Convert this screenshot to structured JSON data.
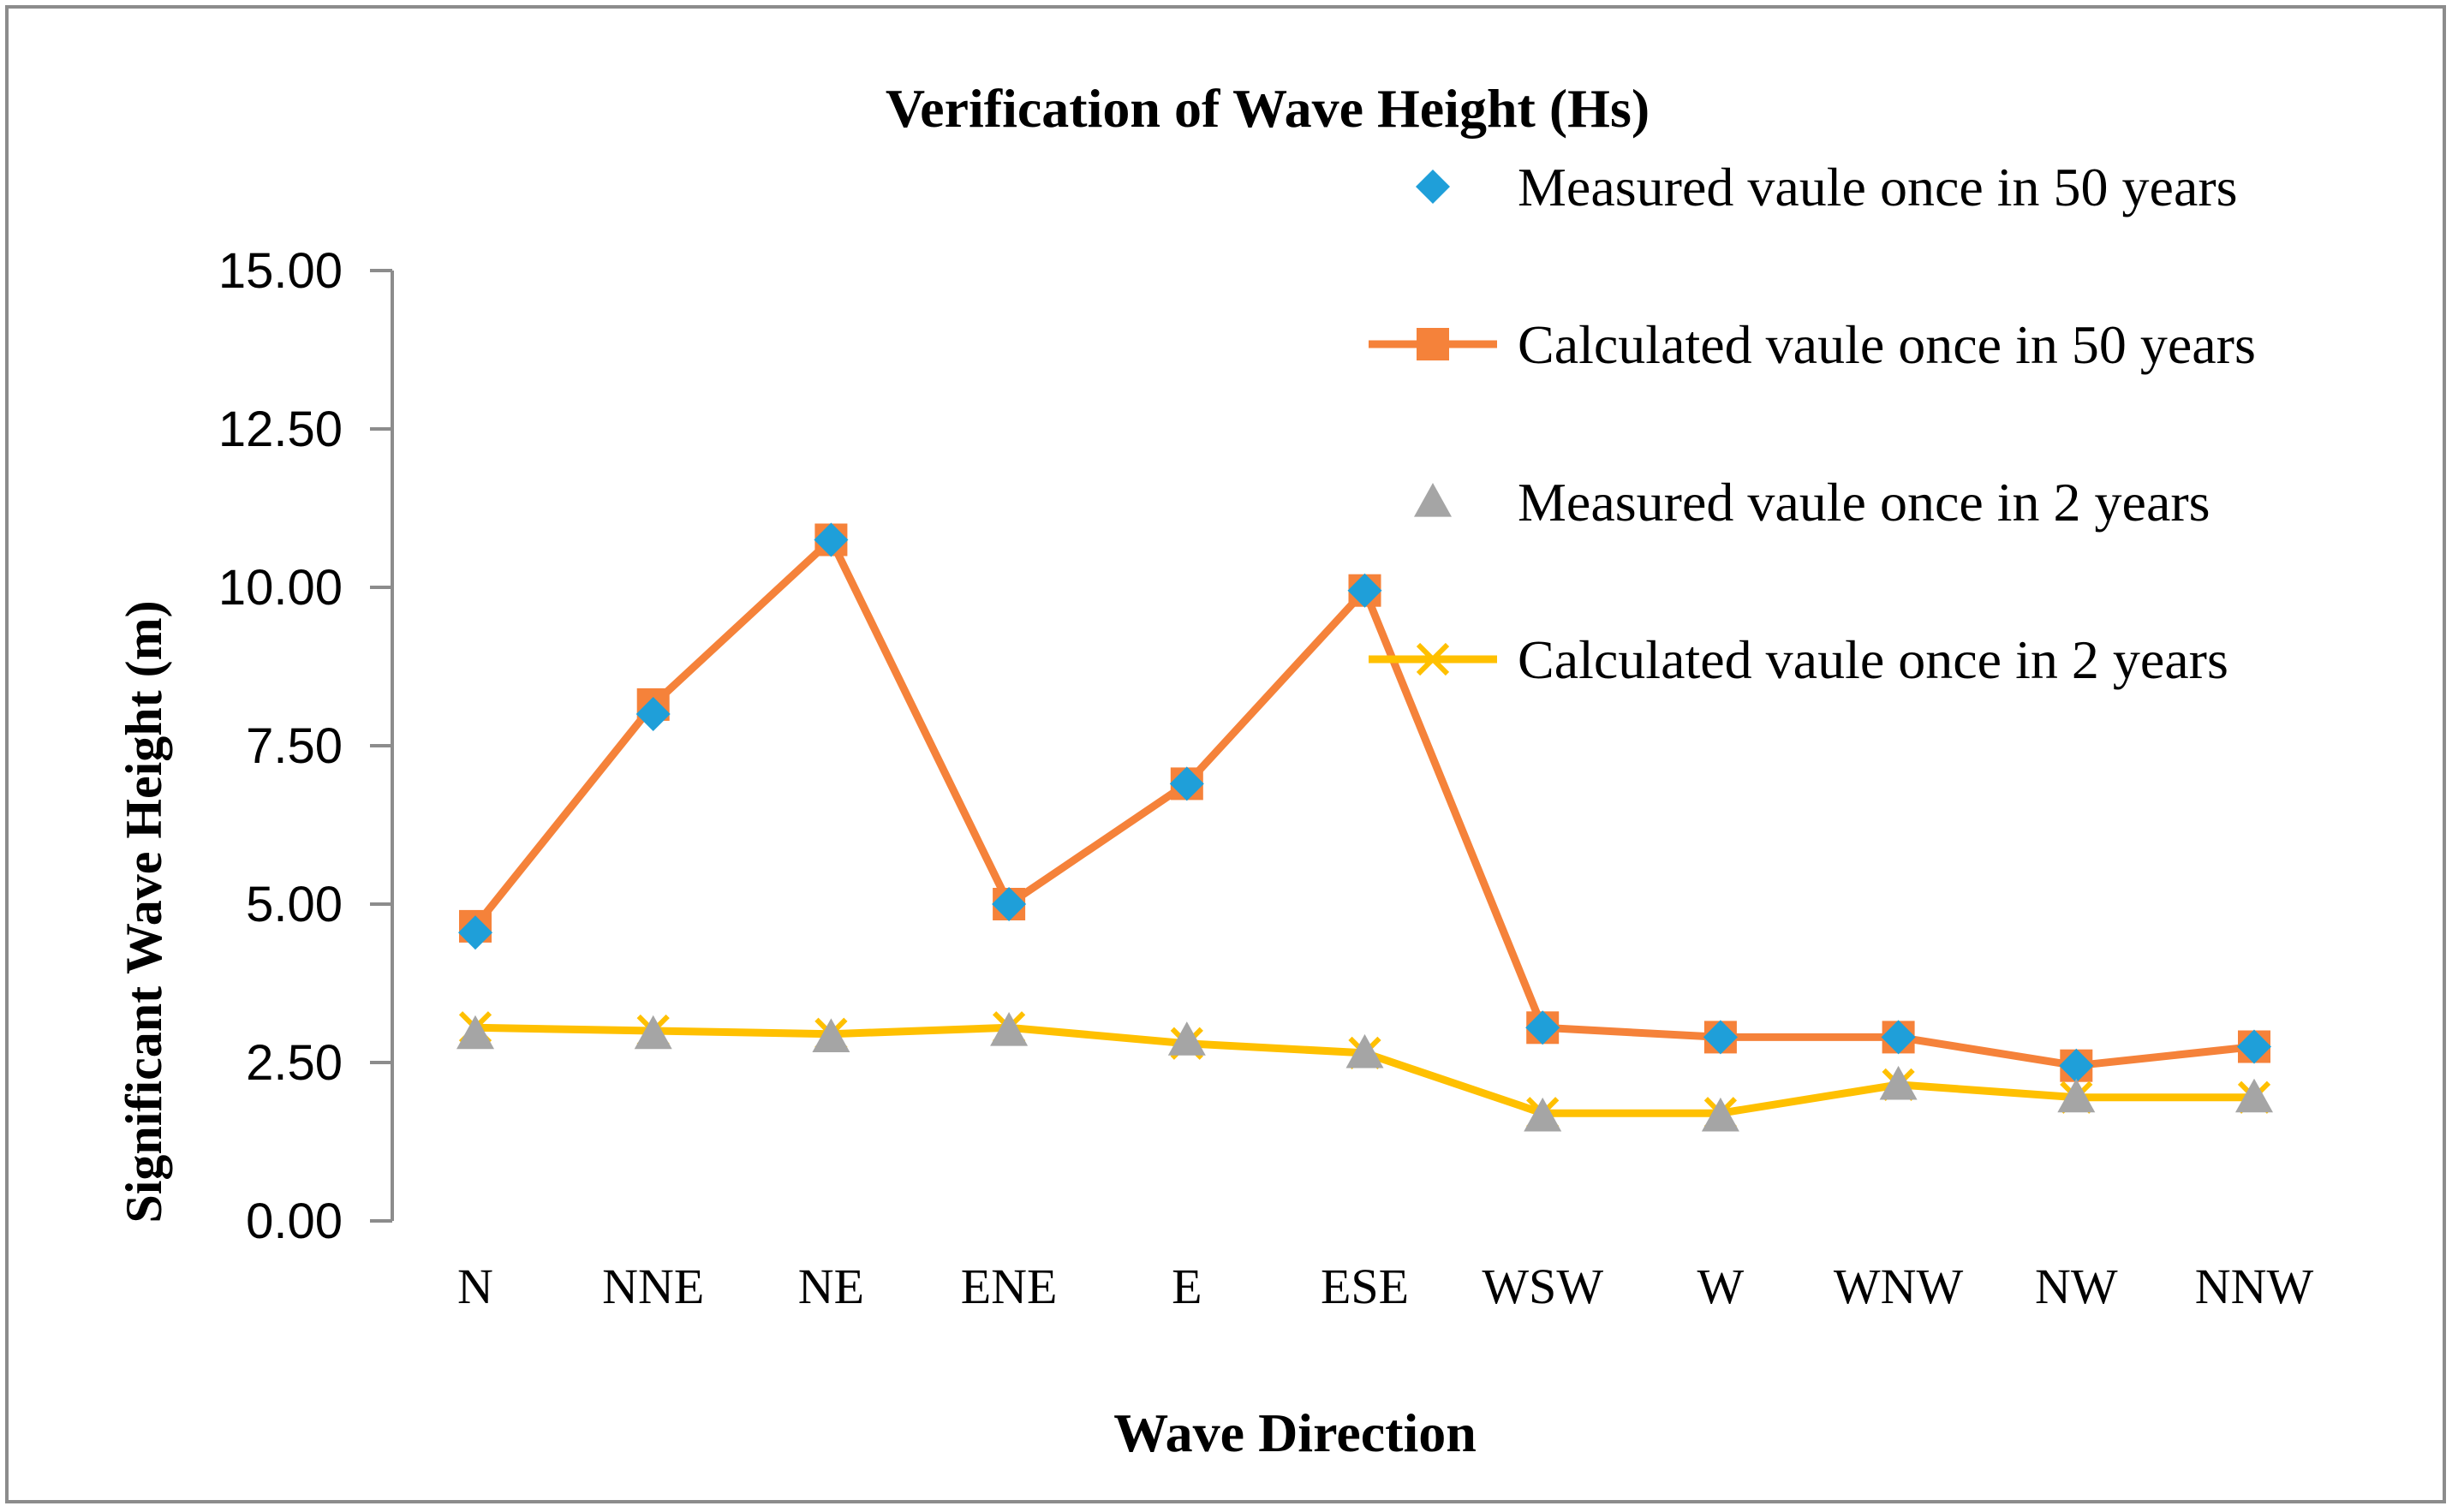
{
  "chart_data": {
    "type": "line",
    "title": "Verification of Wave Height (Hs)",
    "xlabel": "Wave Direction",
    "ylabel": "Significant Wave Height (m)",
    "ylim": [
      0,
      15
    ],
    "yticks": [
      "0.00",
      "2.50",
      "5.00",
      "7.50",
      "10.00",
      "12.50",
      "15.00"
    ],
    "categories": [
      "N",
      "NNE",
      "NE",
      "ENE",
      "E",
      "ESE",
      "WSW",
      "W",
      "WNW",
      "NW",
      "NNW"
    ],
    "grid": false,
    "legend_position": "top-right",
    "series": [
      {
        "name": "Measured vaule once in 50 years",
        "marker": "diamond",
        "line": false,
        "color": "#1f9fd9",
        "values": [
          4.55,
          8.0,
          10.75,
          5.0,
          6.9,
          9.95,
          3.05,
          2.9,
          2.9,
          2.45,
          2.75
        ]
      },
      {
        "name": "Calculated vaule once in 50 years",
        "marker": "square",
        "line": true,
        "color": "#f5823a",
        "values": [
          4.65,
          8.15,
          10.75,
          5.0,
          6.9,
          9.95,
          3.05,
          2.9,
          2.9,
          2.45,
          2.75
        ]
      },
      {
        "name": "Measured vaule once in 2 years",
        "marker": "triangle",
        "line": false,
        "color": "#a5a5a5",
        "values": [
          2.95,
          2.95,
          2.9,
          3.0,
          2.85,
          2.65,
          1.65,
          1.65,
          2.15,
          1.95,
          1.95
        ]
      },
      {
        "name": "Calculated vaule once in 2 years",
        "marker": "x",
        "line": true,
        "color": "#ffc000",
        "values": [
          3.05,
          3.0,
          2.95,
          3.05,
          2.8,
          2.65,
          1.7,
          1.7,
          2.15,
          1.95,
          1.95
        ]
      }
    ]
  }
}
